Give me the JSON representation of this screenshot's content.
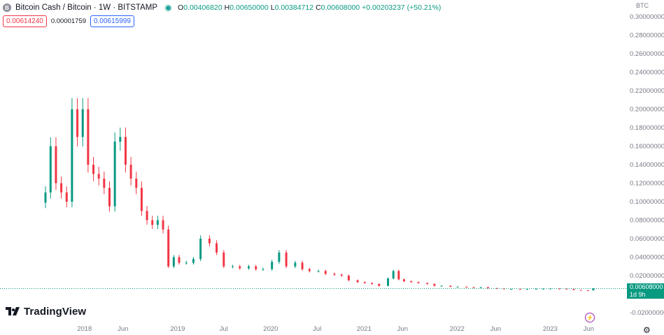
{
  "header": {
    "symbol_icon": "B",
    "title": "Bitcoin Cash / Bitcoin · 1W · BITSTAMP",
    "ohlc": [
      {
        "k": "O",
        "v": "0.00406820"
      },
      {
        "k": "H",
        "v": "0.00650000"
      },
      {
        "k": "L",
        "v": "0.00384712"
      },
      {
        "k": "C",
        "v": "0.00608000"
      },
      {
        "k": "",
        "v": "+0.00203237 (+50.21%)"
      }
    ]
  },
  "prices": {
    "sell": "0.00614240",
    "spread": "0.00001759",
    "buy": "0.00615999"
  },
  "currency": "BTC",
  "logo": "TradingView",
  "last_price": {
    "value": "0.00608000",
    "countdown": "1d 9h"
  },
  "colors": {
    "up": "#089981",
    "down": "#f23645",
    "axis_text": "#787b86"
  },
  "chart_data": {
    "type": "candlestick",
    "ylim": [
      -0.02,
      0.3
    ],
    "y_ticks": [
      "0.30000000",
      "0.28000000",
      "0.26000000",
      "0.24000000",
      "0.22000000",
      "0.20000000",
      "0.18000000",
      "0.16000000",
      "0.14000000",
      "0.12000000",
      "0.10000000",
      "0.08000000",
      "0.06000000",
      "0.04000000",
      "0.02000000",
      "0.00000000",
      "-0.02000000"
    ],
    "y_tick_values": [
      0.3,
      0.28,
      0.26,
      0.24,
      0.22,
      0.2,
      0.18,
      0.16,
      0.14,
      0.12,
      0.1,
      0.08,
      0.06,
      0.04,
      0.02,
      0.0,
      -0.02
    ],
    "x_ticks": [
      "2018",
      "Jun",
      "2019",
      "Jul",
      "2020",
      "Jul",
      "2021",
      "Jun",
      "2022",
      "Jun",
      "2023",
      "Jun"
    ],
    "x_tick_dates": [
      "2018-01-01",
      "2018-06-01",
      "2019-01-01",
      "2019-07-01",
      "2020-01-01",
      "2020-07-01",
      "2021-01-01",
      "2021-06-01",
      "2022-01-01",
      "2022-06-01",
      "2023-01-01",
      "2023-06-01"
    ],
    "last_value": 0.00608,
    "series": [
      {
        "date": "2017-08-01",
        "close": 0.11
      },
      {
        "date": "2017-08-21",
        "close": 0.16
      },
      {
        "date": "2017-09-11",
        "close": 0.12
      },
      {
        "date": "2017-10-02",
        "close": 0.11
      },
      {
        "date": "2017-10-23",
        "close": 0.1
      },
      {
        "date": "2017-11-13",
        "close": 0.2
      },
      {
        "date": "2017-12-04",
        "close": 0.17
      },
      {
        "date": "2017-12-25",
        "close": 0.2
      },
      {
        "date": "2018-01-15",
        "close": 0.14
      },
      {
        "date": "2018-02-05",
        "close": 0.13
      },
      {
        "date": "2018-02-26",
        "close": 0.125
      },
      {
        "date": "2018-03-19",
        "close": 0.115
      },
      {
        "date": "2018-04-09",
        "close": 0.095
      },
      {
        "date": "2018-04-30",
        "close": 0.165
      },
      {
        "date": "2018-05-21",
        "close": 0.17
      },
      {
        "date": "2018-06-11",
        "close": 0.14
      },
      {
        "date": "2018-07-02",
        "close": 0.125
      },
      {
        "date": "2018-07-23",
        "close": 0.115
      },
      {
        "date": "2018-08-13",
        "close": 0.09
      },
      {
        "date": "2018-09-03",
        "close": 0.08
      },
      {
        "date": "2018-09-24",
        "close": 0.075
      },
      {
        "date": "2018-10-15",
        "close": 0.08
      },
      {
        "date": "2018-11-05",
        "close": 0.07
      },
      {
        "date": "2018-11-26",
        "close": 0.03
      },
      {
        "date": "2018-12-17",
        "close": 0.04
      },
      {
        "date": "2019-01-07",
        "close": 0.034
      },
      {
        "date": "2019-02-04",
        "close": 0.034
      },
      {
        "date": "2019-03-04",
        "close": 0.038
      },
      {
        "date": "2019-04-01",
        "close": 0.06
      },
      {
        "date": "2019-05-06",
        "close": 0.055
      },
      {
        "date": "2019-06-03",
        "close": 0.045
      },
      {
        "date": "2019-07-01",
        "close": 0.03
      },
      {
        "date": "2019-08-05",
        "close": 0.03
      },
      {
        "date": "2019-09-02",
        "close": 0.028
      },
      {
        "date": "2019-10-07",
        "close": 0.03
      },
      {
        "date": "2019-11-04",
        "close": 0.027
      },
      {
        "date": "2019-12-02",
        "close": 0.027
      },
      {
        "date": "2020-01-06",
        "close": 0.035
      },
      {
        "date": "2020-02-03",
        "close": 0.045
      },
      {
        "date": "2020-03-02",
        "close": 0.03
      },
      {
        "date": "2020-04-06",
        "close": 0.034
      },
      {
        "date": "2020-05-04",
        "close": 0.027
      },
      {
        "date": "2020-06-01",
        "close": 0.025
      },
      {
        "date": "2020-07-06",
        "close": 0.025
      },
      {
        "date": "2020-08-03",
        "close": 0.022
      },
      {
        "date": "2020-09-07",
        "close": 0.021
      },
      {
        "date": "2020-10-05",
        "close": 0.02
      },
      {
        "date": "2020-11-02",
        "close": 0.015
      },
      {
        "date": "2020-12-07",
        "close": 0.013
      },
      {
        "date": "2021-01-04",
        "close": 0.012
      },
      {
        "date": "2021-02-01",
        "close": 0.011
      },
      {
        "date": "2021-03-01",
        "close": 0.009
      },
      {
        "date": "2021-04-05",
        "close": 0.017
      },
      {
        "date": "2021-04-26",
        "close": 0.025
      },
      {
        "date": "2021-05-17",
        "close": 0.016
      },
      {
        "date": "2021-06-07",
        "close": 0.014
      },
      {
        "date": "2021-07-05",
        "close": 0.013
      },
      {
        "date": "2021-08-02",
        "close": 0.012
      },
      {
        "date": "2021-09-06",
        "close": 0.011
      },
      {
        "date": "2021-10-04",
        "close": 0.009
      },
      {
        "date": "2021-11-01",
        "close": 0.009
      },
      {
        "date": "2021-12-06",
        "close": 0.008
      },
      {
        "date": "2022-01-03",
        "close": 0.008
      },
      {
        "date": "2022-02-07",
        "close": 0.0075
      },
      {
        "date": "2022-03-07",
        "close": 0.007
      },
      {
        "date": "2022-04-04",
        "close": 0.0075
      },
      {
        "date": "2022-05-02",
        "close": 0.0065
      },
      {
        "date": "2022-06-06",
        "close": 0.006
      },
      {
        "date": "2022-07-04",
        "close": 0.0055
      },
      {
        "date": "2022-08-01",
        "close": 0.0055
      },
      {
        "date": "2022-09-05",
        "close": 0.0052
      },
      {
        "date": "2022-10-03",
        "close": 0.0055
      },
      {
        "date": "2022-11-07",
        "close": 0.0058
      },
      {
        "date": "2022-12-05",
        "close": 0.0058
      },
      {
        "date": "2023-01-02",
        "close": 0.006
      },
      {
        "date": "2023-02-06",
        "close": 0.0058
      },
      {
        "date": "2023-03-06",
        "close": 0.0055
      },
      {
        "date": "2023-04-03",
        "close": 0.0045
      },
      {
        "date": "2023-05-01",
        "close": 0.0042
      },
      {
        "date": "2023-05-29",
        "close": 0.0041
      },
      {
        "date": "2023-06-19",
        "close": 0.00608
      }
    ]
  }
}
